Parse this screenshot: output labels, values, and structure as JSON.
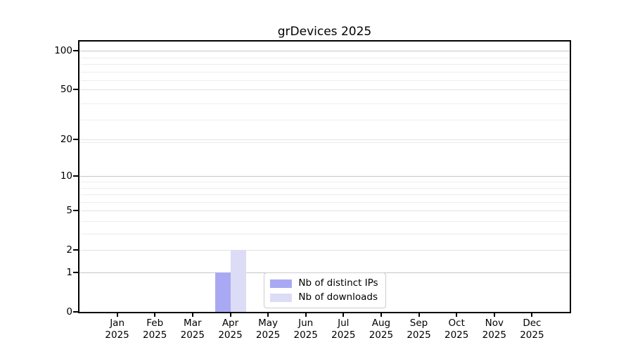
{
  "chart_data": {
    "type": "bar",
    "title": "grDevices 2025",
    "categories": [
      "Jan",
      "Feb",
      "Mar",
      "Apr",
      "May",
      "Jun",
      "Jul",
      "Aug",
      "Sep",
      "Oct",
      "Nov",
      "Dec"
    ],
    "xtick_year": "2025",
    "series": [
      {
        "name": "Nb of distinct IPs",
        "color": "#a9a9f3",
        "values": [
          0,
          0,
          0,
          1,
          0,
          0,
          0,
          0,
          0,
          0,
          0,
          0
        ]
      },
      {
        "name": "Nb of downloads",
        "color": "#dcdcf6",
        "values": [
          0,
          0,
          0,
          2,
          0,
          0,
          0,
          0,
          0,
          0,
          0,
          0
        ]
      }
    ],
    "yticks": [
      0,
      1,
      2,
      5,
      10,
      20,
      50,
      100
    ],
    "yticks_emphasized": [
      1,
      10,
      100
    ],
    "ylim": [
      0,
      115
    ],
    "yscale": "log1p",
    "grid": true,
    "legend_position": "lower center",
    "bar_color_accent": "#a9a9f3",
    "bar_color_light": "#dcdcf6"
  }
}
